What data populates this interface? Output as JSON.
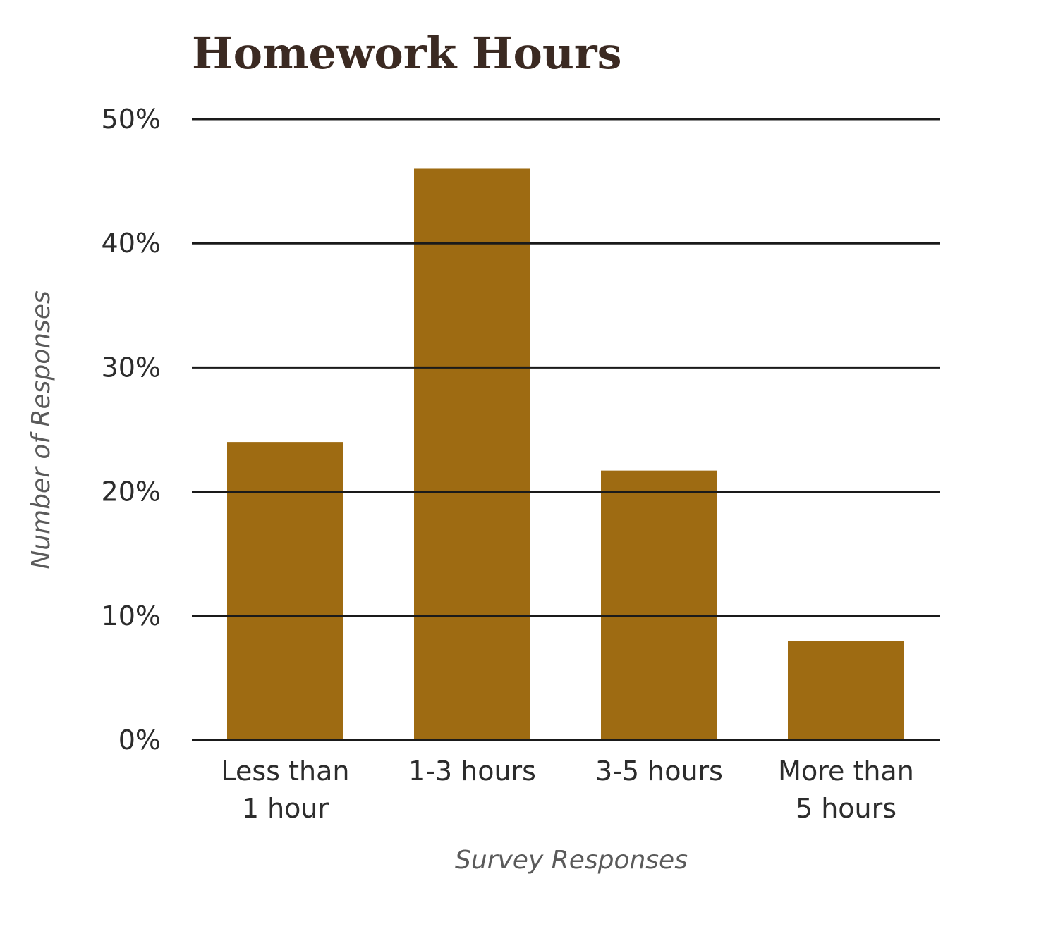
{
  "chart_data": {
    "type": "bar",
    "title": "Homework Hours",
    "xlabel": "Survey Responses",
    "ylabel": "Number of Responses",
    "categories": [
      [
        "Less than",
        "1 hour"
      ],
      [
        "1-3 hours"
      ],
      [
        "3-5 hours"
      ],
      [
        "More than",
        "5 hours"
      ]
    ],
    "values": [
      24,
      46,
      21.7,
      8
    ],
    "ylim": [
      0,
      50
    ],
    "yticks": [
      "0%",
      "10%",
      "20%",
      "30%",
      "40%",
      "50%"
    ],
    "ytick_values": [
      0,
      10,
      20,
      30,
      40,
      50
    ],
    "grid": true,
    "bar_color": "#9e6b12"
  }
}
